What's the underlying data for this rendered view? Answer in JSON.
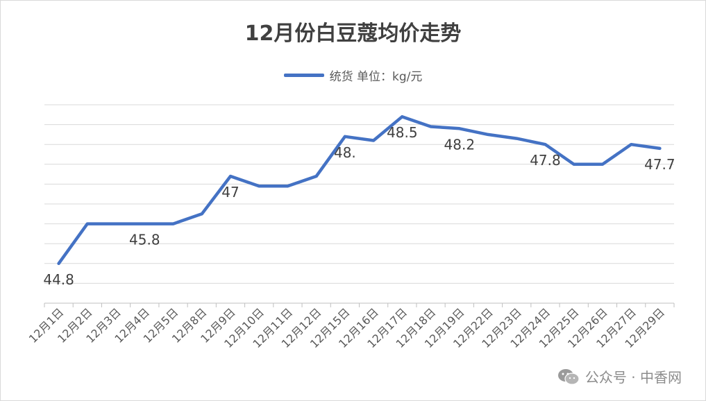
{
  "chart_data": {
    "type": "line",
    "title": "12月份白豆蔻均价走势",
    "legend": {
      "position": "top",
      "label": "统货 单位：kg/元"
    },
    "categories": [
      "12月1日",
      "12月2日",
      "12月3日",
      "12月4日",
      "12月5日",
      "12月8日",
      "12月9日",
      "12月10日",
      "12月11日",
      "12月12日",
      "12月15日",
      "12月16日",
      "12月17日",
      "12月18日",
      "12月19日",
      "12月22日",
      "12月23日",
      "12月24日",
      "12月25日",
      "12月26日",
      "12月27日",
      "12月29日"
    ],
    "series": [
      {
        "name": "统货 单位：kg/元",
        "color": "#4472C4",
        "values": [
          44.8,
          45.8,
          45.8,
          45.8,
          45.8,
          46.05,
          47,
          46.75,
          46.75,
          47,
          48.0,
          47.9,
          48.5,
          48.25,
          48.2,
          48.05,
          47.95,
          47.8,
          47.3,
          47.3,
          47.8,
          47.7
        ]
      }
    ],
    "data_labels": [
      {
        "index": 0,
        "text": "44.8"
      },
      {
        "index": 3,
        "text": "45.8"
      },
      {
        "index": 6,
        "text": "47"
      },
      {
        "index": 10,
        "text": "48."
      },
      {
        "index": 12,
        "text": "48.5"
      },
      {
        "index": 14,
        "text": "48.2"
      },
      {
        "index": 17,
        "text": "47.8"
      },
      {
        "index": 21,
        "text": "47.7"
      }
    ],
    "ylim": [
      43.8,
      48.8
    ],
    "grid": true,
    "y_tick_labels_shown": false
  },
  "watermark": {
    "icon": "wechat-icon",
    "text": "公众号 · 中香网"
  }
}
